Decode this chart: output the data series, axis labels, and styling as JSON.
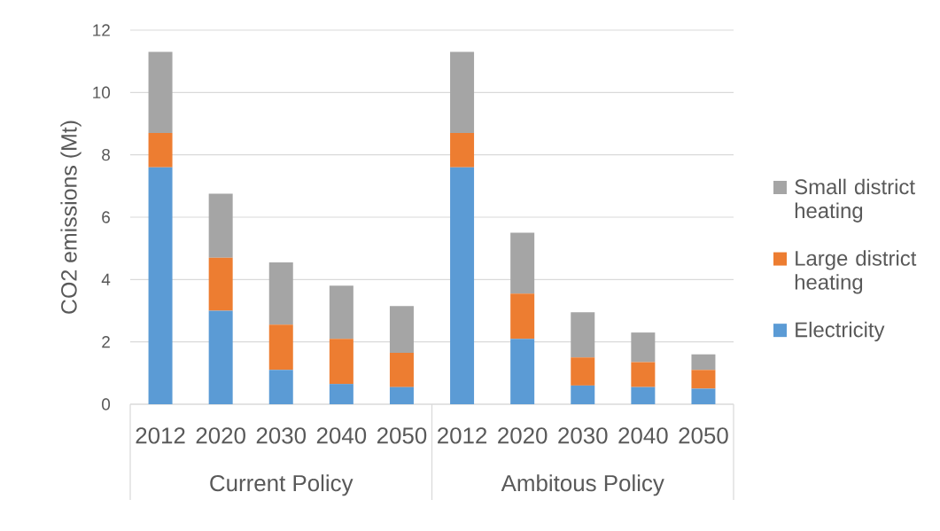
{
  "chart_data": {
    "type": "bar",
    "stacked": true,
    "ylabel": "CO2 emissions (Mt)",
    "categories": [
      "2012",
      "2020",
      "2030",
      "2040",
      "2050",
      "2012",
      "2020",
      "2030",
      "2040",
      "2050"
    ],
    "annotations": [
      "Current Policy",
      "Ambitous Policy"
    ],
    "series": [
      {
        "name": "Electricity",
        "color": "#5b9bd5",
        "values": [
          7.6,
          3.0,
          1.1,
          0.65,
          0.55,
          7.6,
          2.1,
          0.6,
          0.55,
          0.5
        ]
      },
      {
        "name": "Large district heating",
        "color": "#ed7d31",
        "values": [
          1.1,
          1.7,
          1.45,
          1.45,
          1.1,
          1.1,
          1.45,
          0.9,
          0.8,
          0.6
        ]
      },
      {
        "name": "Small district heating",
        "color": "#a5a5a5",
        "values": [
          2.6,
          2.05,
          2.0,
          1.7,
          1.5,
          2.6,
          1.95,
          1.45,
          0.95,
          0.5
        ]
      }
    ],
    "ylim": [
      0,
      12
    ],
    "yticks": [
      0,
      2,
      4,
      6,
      8,
      10,
      12
    ],
    "grid": "y",
    "legend": "right"
  }
}
